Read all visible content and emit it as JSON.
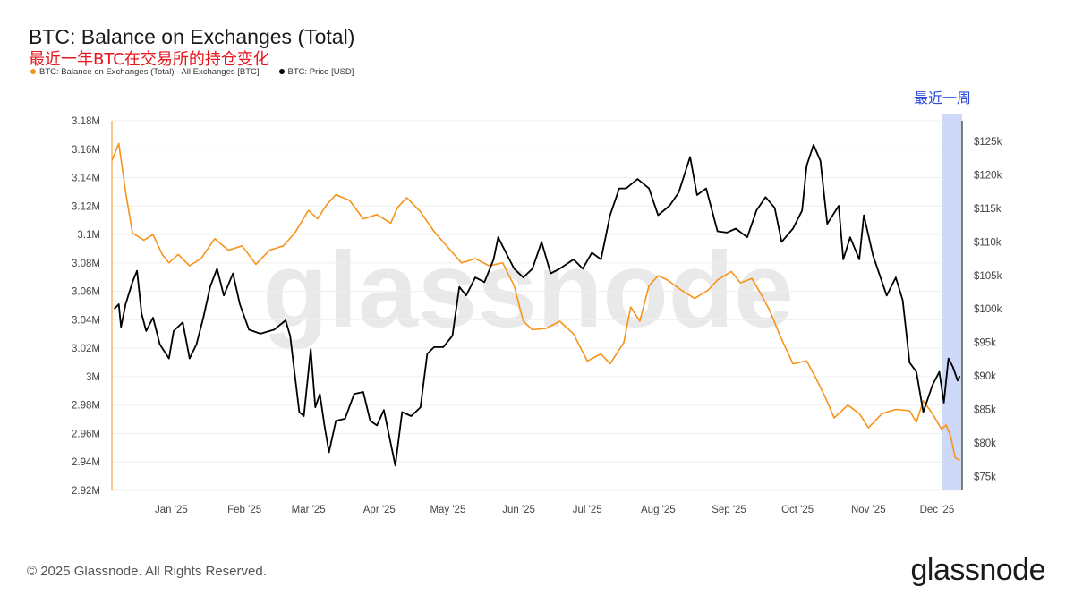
{
  "chart_data": {
    "type": "line",
    "title": "BTC: Balance on Exchanges (Total)",
    "subtitle": "最近一年BTC在交易所的持仓变化",
    "x_unit": "days since 2024-12-06",
    "xlim": [
      0,
      372
    ],
    "x_ticks": [
      {
        "label": "Jan '25",
        "day": 26
      },
      {
        "label": "Feb '25",
        "day": 58
      },
      {
        "label": "Mar '25",
        "day": 86
      },
      {
        "label": "Apr '25",
        "day": 117
      },
      {
        "label": "May '25",
        "day": 147
      },
      {
        "label": "Jun '25",
        "day": 178
      },
      {
        "label": "Jul '25",
        "day": 208
      },
      {
        "label": "Aug '25",
        "day": 239
      },
      {
        "label": "Sep '25",
        "day": 270
      },
      {
        "label": "Oct '25",
        "day": 300
      },
      {
        "label": "Nov '25",
        "day": 331
      },
      {
        "label": "Dec '25",
        "day": 361
      }
    ],
    "y_left": {
      "unit": "BTC (millions)",
      "ylim": [
        2.92,
        3.18
      ],
      "ticks": [
        {
          "v": 3.18,
          "label": "3.18M"
        },
        {
          "v": 3.16,
          "label": "3.16M"
        },
        {
          "v": 3.14,
          "label": "3.14M"
        },
        {
          "v": 3.12,
          "label": "3.12M"
        },
        {
          "v": 3.1,
          "label": "3.1M"
        },
        {
          "v": 3.08,
          "label": "3.08M"
        },
        {
          "v": 3.06,
          "label": "3.06M"
        },
        {
          "v": 3.04,
          "label": "3.04M"
        },
        {
          "v": 3.02,
          "label": "3.02M"
        },
        {
          "v": 3.0,
          "label": "3M"
        },
        {
          "v": 2.98,
          "label": "2.98M"
        },
        {
          "v": 2.96,
          "label": "2.96M"
        },
        {
          "v": 2.94,
          "label": "2.94M"
        },
        {
          "v": 2.92,
          "label": "2.92M"
        }
      ]
    },
    "y_right": {
      "unit": "USD (thousands)",
      "ylim": [
        72.9,
        128.1
      ],
      "ticks": [
        {
          "v": 125,
          "label": "$125k"
        },
        {
          "v": 120,
          "label": "$120k"
        },
        {
          "v": 115,
          "label": "$115k"
        },
        {
          "v": 110,
          "label": "$110k"
        },
        {
          "v": 105,
          "label": "$105k"
        },
        {
          "v": 100,
          "label": "$100k"
        },
        {
          "v": 95,
          "label": "$95k"
        },
        {
          "v": 90,
          "label": "$90k"
        },
        {
          "v": 85,
          "label": "$85k"
        },
        {
          "v": 80,
          "label": "$80k"
        },
        {
          "v": 75,
          "label": "$75k"
        }
      ]
    },
    "grid": true,
    "legend_position": "top-left",
    "highlight": {
      "label": "最近一周",
      "from_day": 363,
      "to_day": 372,
      "color": "#c9d4f8"
    },
    "series": [
      {
        "name": "BTC: Balance on Exchanges (Total) - All Exchanges [BTC]",
        "axis": "left",
        "color": "#f7931a",
        "points": [
          [
            0,
            3.152
          ],
          [
            3,
            3.164
          ],
          [
            6,
            3.13
          ],
          [
            9,
            3.101
          ],
          [
            14,
            3.096
          ],
          [
            18,
            3.1
          ],
          [
            22,
            3.086
          ],
          [
            25,
            3.08
          ],
          [
            29,
            3.086
          ],
          [
            34,
            3.078
          ],
          [
            39,
            3.083
          ],
          [
            45,
            3.097
          ],
          [
            51,
            3.089
          ],
          [
            57,
            3.092
          ],
          [
            63,
            3.079
          ],
          [
            69,
            3.089
          ],
          [
            75,
            3.092
          ],
          [
            80,
            3.101
          ],
          [
            86,
            3.117
          ],
          [
            90,
            3.111
          ],
          [
            94,
            3.121
          ],
          [
            98,
            3.128
          ],
          [
            104,
            3.124
          ],
          [
            110,
            3.111
          ],
          [
            116,
            3.114
          ],
          [
            122,
            3.108
          ],
          [
            125,
            3.119
          ],
          [
            129,
            3.126
          ],
          [
            135,
            3.116
          ],
          [
            141,
            3.102
          ],
          [
            147,
            3.091
          ],
          [
            153,
            3.08
          ],
          [
            159,
            3.083
          ],
          [
            165,
            3.078
          ],
          [
            171,
            3.08
          ],
          [
            176,
            3.064
          ],
          [
            180,
            3.039
          ],
          [
            184,
            3.033
          ],
          [
            190,
            3.034
          ],
          [
            196,
            3.039
          ],
          [
            202,
            3.03
          ],
          [
            208,
            3.011
          ],
          [
            214,
            3.016
          ],
          [
            218,
            3.009
          ],
          [
            224,
            3.024
          ],
          [
            227,
            3.049
          ],
          [
            231,
            3.039
          ],
          [
            235,
            3.064
          ],
          [
            239,
            3.071
          ],
          [
            243,
            3.068
          ],
          [
            249,
            3.061
          ],
          [
            255,
            3.055
          ],
          [
            261,
            3.061
          ],
          [
            265,
            3.068
          ],
          [
            271,
            3.074
          ],
          [
            275,
            3.066
          ],
          [
            280,
            3.069
          ],
          [
            284,
            3.058
          ],
          [
            288,
            3.046
          ],
          [
            292,
            3.03
          ],
          [
            298,
            3.009
          ],
          [
            304,
            3.011
          ],
          [
            308,
            2.999
          ],
          [
            312,
            2.986
          ],
          [
            316,
            2.971
          ],
          [
            322,
            2.98
          ],
          [
            327,
            2.974
          ],
          [
            331,
            2.964
          ],
          [
            337,
            2.974
          ],
          [
            343,
            2.977
          ],
          [
            349,
            2.976
          ],
          [
            352,
            2.968
          ],
          [
            355,
            2.983
          ],
          [
            359,
            2.974
          ],
          [
            363,
            2.963
          ],
          [
            365,
            2.966
          ],
          [
            367,
            2.958
          ],
          [
            369,
            2.943
          ],
          [
            371,
            2.941
          ]
        ]
      },
      {
        "name": "BTC: Price [USD]",
        "axis": "right",
        "color": "#000000",
        "points": [
          [
            1,
            100.0
          ],
          [
            3,
            100.7
          ],
          [
            4,
            97.3
          ],
          [
            6,
            100.7
          ],
          [
            9,
            104.0
          ],
          [
            11,
            105.7
          ],
          [
            13,
            99.3
          ],
          [
            15,
            96.7
          ],
          [
            18,
            98.7
          ],
          [
            21,
            94.7
          ],
          [
            25,
            92.6
          ],
          [
            27,
            96.7
          ],
          [
            31,
            98.0
          ],
          [
            34,
            92.6
          ],
          [
            37,
            94.7
          ],
          [
            40,
            98.7
          ],
          [
            43,
            103.3
          ],
          [
            46,
            106.0
          ],
          [
            49,
            102.0
          ],
          [
            53,
            105.3
          ],
          [
            56,
            100.7
          ],
          [
            60,
            96.9
          ],
          [
            65,
            96.3
          ],
          [
            71,
            96.9
          ],
          [
            76,
            98.3
          ],
          [
            78,
            96.0
          ],
          [
            82,
            84.6
          ],
          [
            84,
            84.0
          ],
          [
            87,
            94.0
          ],
          [
            89,
            85.3
          ],
          [
            91,
            87.3
          ],
          [
            93,
            82.6
          ],
          [
            95,
            78.6
          ],
          [
            98,
            83.3
          ],
          [
            102,
            83.6
          ],
          [
            106,
            87.3
          ],
          [
            110,
            87.6
          ],
          [
            113,
            83.3
          ],
          [
            116,
            82.6
          ],
          [
            119,
            84.9
          ],
          [
            122,
            79.9
          ],
          [
            124,
            76.6
          ],
          [
            127,
            84.6
          ],
          [
            131,
            84.0
          ],
          [
            135,
            85.3
          ],
          [
            138,
            93.3
          ],
          [
            141,
            94.3
          ],
          [
            145,
            94.3
          ],
          [
            149,
            96.0
          ],
          [
            152,
            103.3
          ],
          [
            155,
            102.0
          ],
          [
            159,
            104.7
          ],
          [
            163,
            104.0
          ],
          [
            167,
            107.4
          ],
          [
            169,
            110.7
          ],
          [
            173,
            108.0
          ],
          [
            176,
            106.0
          ],
          [
            180,
            104.7
          ],
          [
            184,
            106.0
          ],
          [
            188,
            110.0
          ],
          [
            192,
            105.3
          ],
          [
            196,
            106.0
          ],
          [
            202,
            107.4
          ],
          [
            206,
            106.0
          ],
          [
            210,
            108.4
          ],
          [
            214,
            107.4
          ],
          [
            218,
            114.0
          ],
          [
            222,
            118.0
          ],
          [
            225,
            118.0
          ],
          [
            230,
            119.4
          ],
          [
            235,
            118.0
          ],
          [
            239,
            114.0
          ],
          [
            244,
            115.4
          ],
          [
            248,
            117.4
          ],
          [
            253,
            122.7
          ],
          [
            256,
            117.0
          ],
          [
            260,
            118.0
          ],
          [
            265,
            111.6
          ],
          [
            269,
            111.4
          ],
          [
            273,
            112.0
          ],
          [
            278,
            110.7
          ],
          [
            282,
            114.7
          ],
          [
            286,
            116.7
          ],
          [
            290,
            115.1
          ],
          [
            293,
            110.0
          ],
          [
            298,
            112.0
          ],
          [
            302,
            114.7
          ],
          [
            304,
            121.4
          ],
          [
            307,
            124.5
          ],
          [
            310,
            122.1
          ],
          [
            313,
            112.7
          ],
          [
            318,
            115.4
          ],
          [
            320,
            107.4
          ],
          [
            323,
            110.7
          ],
          [
            327,
            107.4
          ],
          [
            329,
            114.0
          ],
          [
            333,
            108.0
          ],
          [
            339,
            102.0
          ],
          [
            343,
            104.7
          ],
          [
            346,
            101.3
          ],
          [
            349,
            92.0
          ],
          [
            352,
            90.6
          ],
          [
            355,
            84.6
          ],
          [
            359,
            88.6
          ],
          [
            362,
            90.6
          ],
          [
            364,
            86.0
          ],
          [
            366,
            92.6
          ],
          [
            368,
            91.3
          ],
          [
            370,
            89.3
          ],
          [
            371,
            90.0
          ]
        ]
      }
    ]
  },
  "watermark": "glassnode",
  "footer": {
    "copyright": "© 2025 Glassnode. All Rights Reserved.",
    "logo": "glassnode"
  }
}
